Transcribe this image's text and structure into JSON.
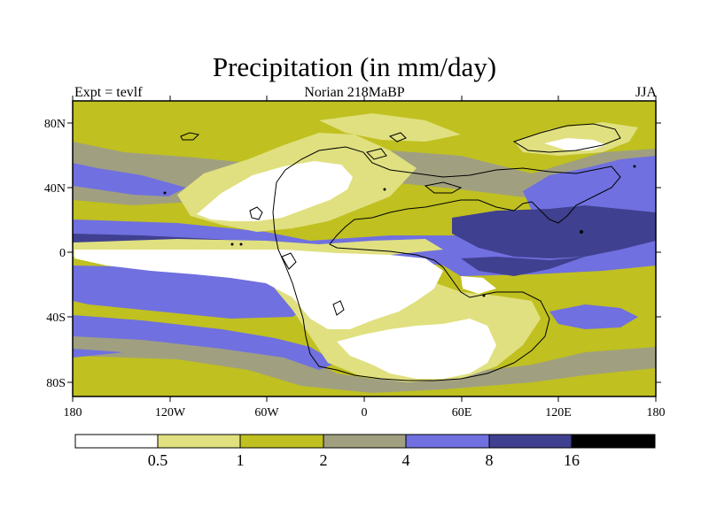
{
  "header": {
    "title": "Precipitation (in mm/day)",
    "left": "Expt = tevlf",
    "center": "Norian 218MaBP",
    "right": "JJA"
  },
  "axes": {
    "x_ticks": [
      "180",
      "120W",
      "60W",
      "0",
      "60E",
      "120E",
      "180"
    ],
    "y_ticks": [
      "80N",
      "40N",
      "0",
      "40S",
      "80S"
    ]
  },
  "colorbar": {
    "labels": [
      "0.5",
      "1",
      "2",
      "4",
      "8",
      "16"
    ],
    "colors": [
      "#ffffff",
      "#e0e080",
      "#c0c020",
      "#a0a080",
      "#7070e0",
      "#404090",
      "#000000"
    ]
  },
  "palette": {
    "white": "#ffffff",
    "pale_yellow": "#e0e080",
    "olive": "#c0c020",
    "gray": "#a0a080",
    "blue": "#7070e0",
    "dark_blue": "#404090",
    "black": "#000000"
  }
}
